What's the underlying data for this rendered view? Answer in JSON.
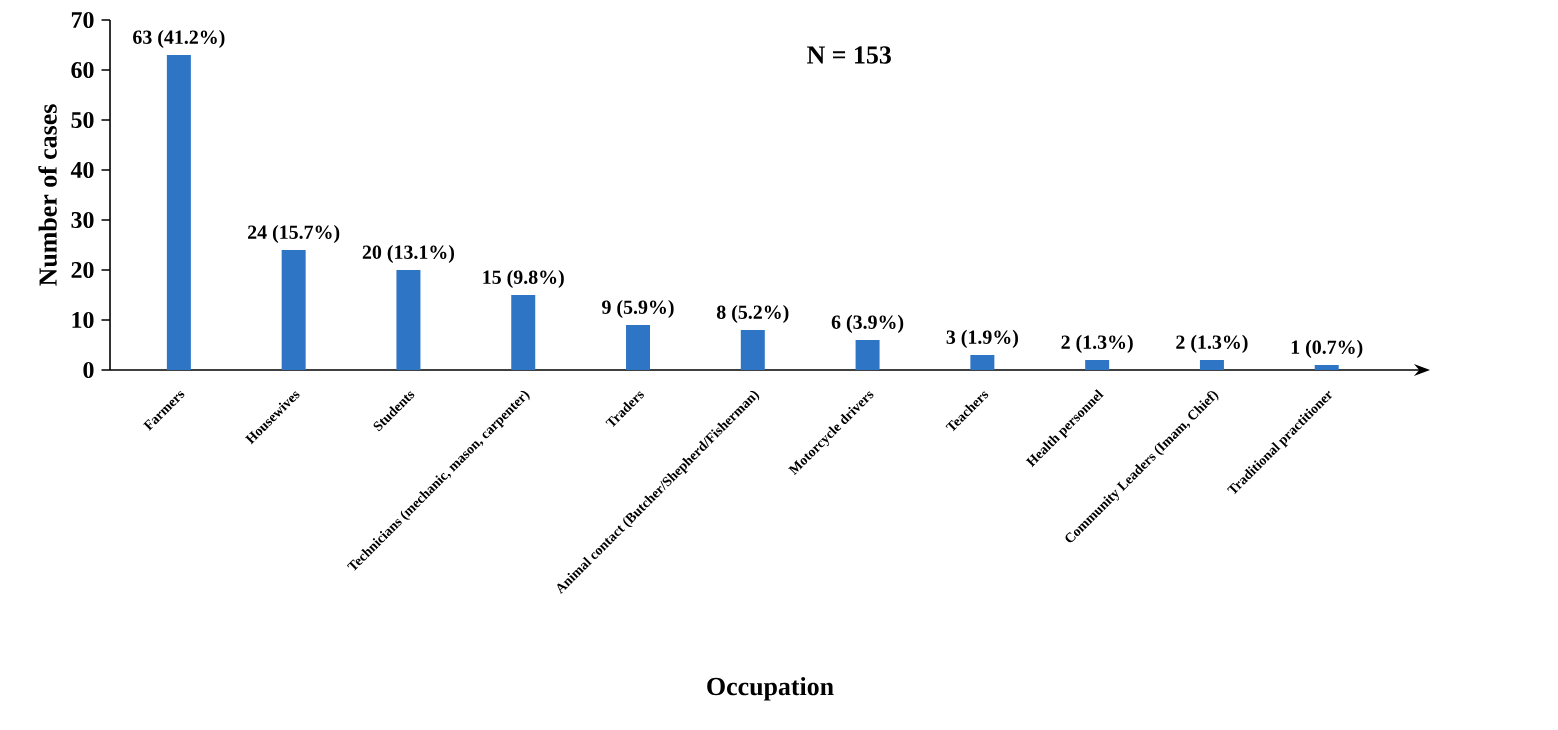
{
  "chart_data": {
    "type": "bar",
    "xlabel": "Occupation",
    "ylabel": "Number of cases",
    "categories": [
      "Farmers",
      "Housewives",
      "Students",
      "Technicians (mechanic, mason, carpenter)",
      "Traders",
      "Animal contact (Butcher/Shepherd/Fisherman)",
      "Motorcycle drivers",
      "Teachers",
      "Health personnel",
      "Community Leaders  (Imam, Chief)",
      "Traditional practitioner"
    ],
    "values": [
      63,
      24,
      20,
      15,
      9,
      8,
      6,
      3,
      2,
      2,
      1
    ],
    "value_labels": [
      "63 (41.2%)",
      "24 (15.7%)",
      "20 (13.1%)",
      "15 (9.8%)",
      "9 (5.9%)",
      "8 (5.2%)",
      "6 (3.9%)",
      "3 (1.9%)",
      "2 (1.3%)",
      "2 (1.3%)",
      "1 (0.7%)"
    ],
    "color": "#2e75c6",
    "ylim": [
      0,
      70
    ],
    "yticks": [
      0,
      10,
      20,
      30,
      40,
      50,
      60,
      70
    ],
    "grid": false,
    "annotations": [
      "N = 153"
    ]
  }
}
